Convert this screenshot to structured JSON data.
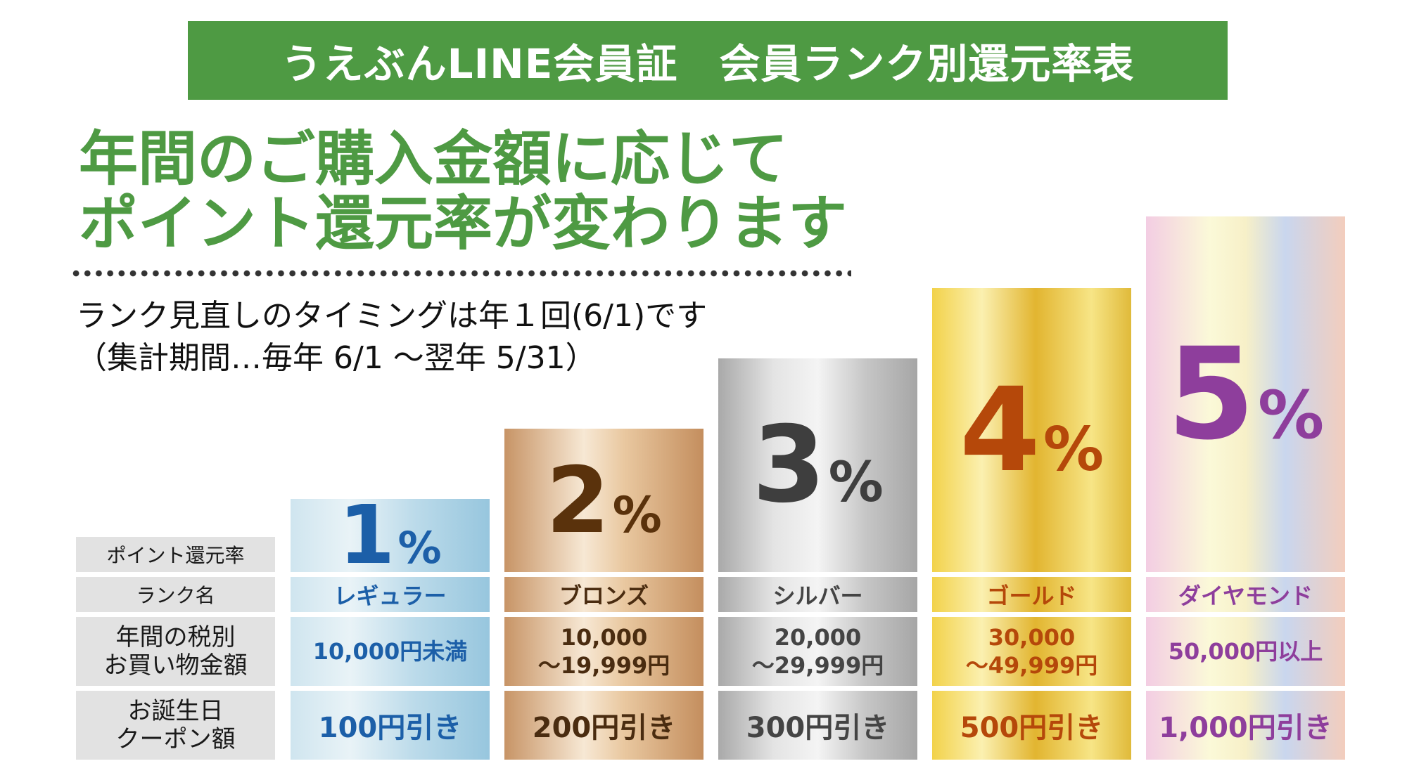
{
  "header": {
    "title": "うえぶんLINE会員証　会員ランク別還元率表"
  },
  "headline": {
    "line1": "年間のご購入金額に応じて",
    "line2": "ポイント還元率が変わります"
  },
  "note": {
    "line1": "ランク見直しのタイミングは年１回(6/1)です",
    "line2": "（集計期間…毎年 6/1 ～翌年 5/31）"
  },
  "row_labels": {
    "rate": "ポイント還元率",
    "rank_name": "ランク名",
    "amount_line1": "年間の税別",
    "amount_line2": "お買い物金額",
    "coupon_line1": "お誕生日",
    "coupon_line2": "クーポン額"
  },
  "ranks": [
    {
      "rate": "1",
      "percent_sign": "%",
      "name": "レギュラー",
      "amount_line1": "10,000円未満",
      "amount_line2": "",
      "coupon": "100円引き",
      "text_color": "#1c5fa8",
      "rate_color": "#1c5fa8"
    },
    {
      "rate": "2",
      "percent_sign": "%",
      "name": "ブロンズ",
      "amount_line1": "10,000",
      "amount_line2": "～19,999円",
      "coupon": "200円引き",
      "text_color": "#4a2c10",
      "rate_color": "#5a320c"
    },
    {
      "rate": "3",
      "percent_sign": "%",
      "name": "シルバー",
      "amount_line1": "20,000",
      "amount_line2": "～29,999円",
      "coupon": "300円引き",
      "text_color": "#444444",
      "rate_color": "#3e3e3e"
    },
    {
      "rate": "4",
      "percent_sign": "%",
      "name": "ゴールド",
      "amount_line1": "30,000",
      "amount_line2": "～49,999円",
      "coupon": "500円引き",
      "text_color": "#b5480a",
      "rate_color": "#b5480a"
    },
    {
      "rate": "5",
      "percent_sign": "%",
      "name": "ダイヤモンド",
      "amount_line1": "50,000円以上",
      "amount_line2": "",
      "coupon": "1,000円引き",
      "text_color": "#8e3e9c",
      "rate_color": "#8e3e9c"
    }
  ],
  "colors": {
    "brand_green": "#4e9a43",
    "label_gray": "#e2e2e2"
  }
}
